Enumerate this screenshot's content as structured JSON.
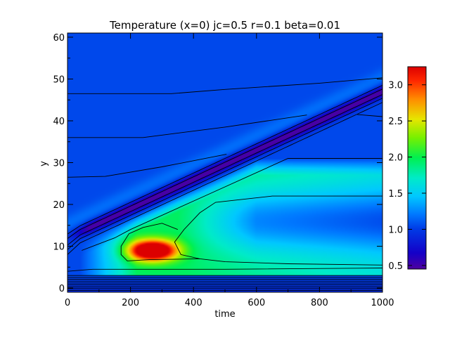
{
  "chart_data": {
    "type": "heatmap",
    "title": "Temperature (x=0) jc=0.5 r=0.1 beta=0.01",
    "xlabel": "time",
    "ylabel": "y",
    "xlim": [
      0,
      1000
    ],
    "ylim": [
      -1,
      61
    ],
    "x_ticks": [
      0,
      200,
      400,
      600,
      800,
      1000
    ],
    "y_ticks": [
      0,
      10,
      20,
      30,
      40,
      50,
      60
    ],
    "colorbar": {
      "range": [
        0.45,
        3.25
      ],
      "ticks": [
        0.5,
        1.0,
        1.5,
        2.0,
        2.5,
        3.0
      ],
      "tick_labels": [
        "0.5",
        "1.0",
        "1.5",
        "2.0",
        "2.5",
        "3.0"
      ],
      "colormap": "rainbow"
    },
    "background_value": 1.05,
    "features": {
      "cool_front": {
        "from": [
          0,
          12
        ],
        "to": [
          1000,
          47
        ],
        "min_value": 0.5
      },
      "hot_spot": {
        "center": [
          270,
          9
        ],
        "peak_value": 3.2
      },
      "warm_wedge_top": [
        [
          200,
          14
        ],
        [
          700,
          31
        ],
        [
          1000,
          31
        ]
      ],
      "boundary_layer_rows": [
        0,
        4
      ]
    }
  }
}
